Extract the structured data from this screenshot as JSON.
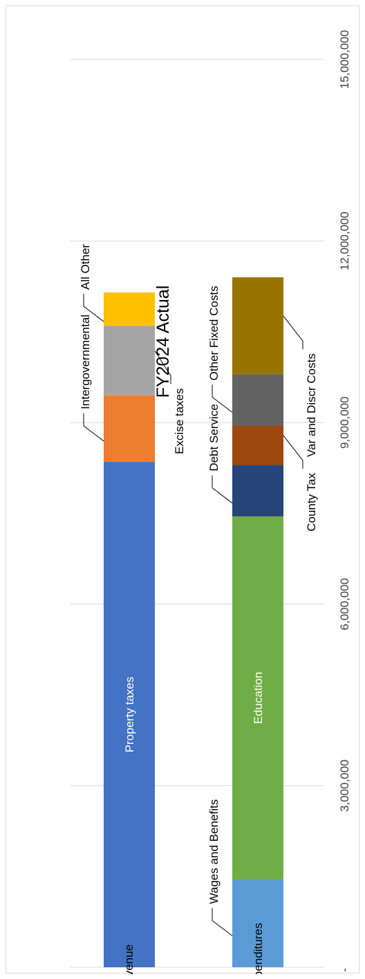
{
  "chart_data": {
    "type": "bar",
    "orientation": "horizontal-stacked",
    "title": "FY2024 Actual",
    "xlabel": "",
    "ylabel": "",
    "xlim": [
      0,
      15000000
    ],
    "grid": true,
    "x_ticks": [
      {
        "value": 0,
        "label": "-"
      },
      {
        "value": 3000000,
        "label": "3,000,000"
      },
      {
        "value": 6000000,
        "label": "6,000,000"
      },
      {
        "value": 9000000,
        "label": "9,000,000"
      },
      {
        "value": 12000000,
        "label": "12,000,000"
      },
      {
        "value": 15000000,
        "label": "15,000,000"
      }
    ],
    "categories": [
      "Revenue",
      "Expenditures"
    ],
    "stacks": [
      {
        "category": "Revenue",
        "segments": [
          {
            "name": "Property taxes",
            "value": 8350000,
            "color": "#4472c4",
            "inside_label": true
          },
          {
            "name": "Intergovernmental",
            "value": 1100000,
            "color": "#ed7d31"
          },
          {
            "name": "Excise taxes",
            "value": 1150000,
            "color": "#a5a5a5"
          },
          {
            "name": "All Other",
            "value": 550000,
            "color": "#ffc000"
          }
        ]
      },
      {
        "category": "Expenditures",
        "segments": [
          {
            "name": "Wages and Benefits",
            "value": 1450000,
            "color": "#5b9bd5"
          },
          {
            "name": "Education",
            "value": 6000000,
            "color": "#70ad47",
            "inside_label": true
          },
          {
            "name": "Debt Service",
            "value": 850000,
            "color": "#264478"
          },
          {
            "name": "County Tax",
            "value": 650000,
            "color": "#9e480e"
          },
          {
            "name": "Other Fixed Costs",
            "value": 850000,
            "color": "#636363"
          },
          {
            "name": "Var and Discr Costs",
            "value": 1600000,
            "color": "#997300"
          }
        ]
      }
    ]
  }
}
